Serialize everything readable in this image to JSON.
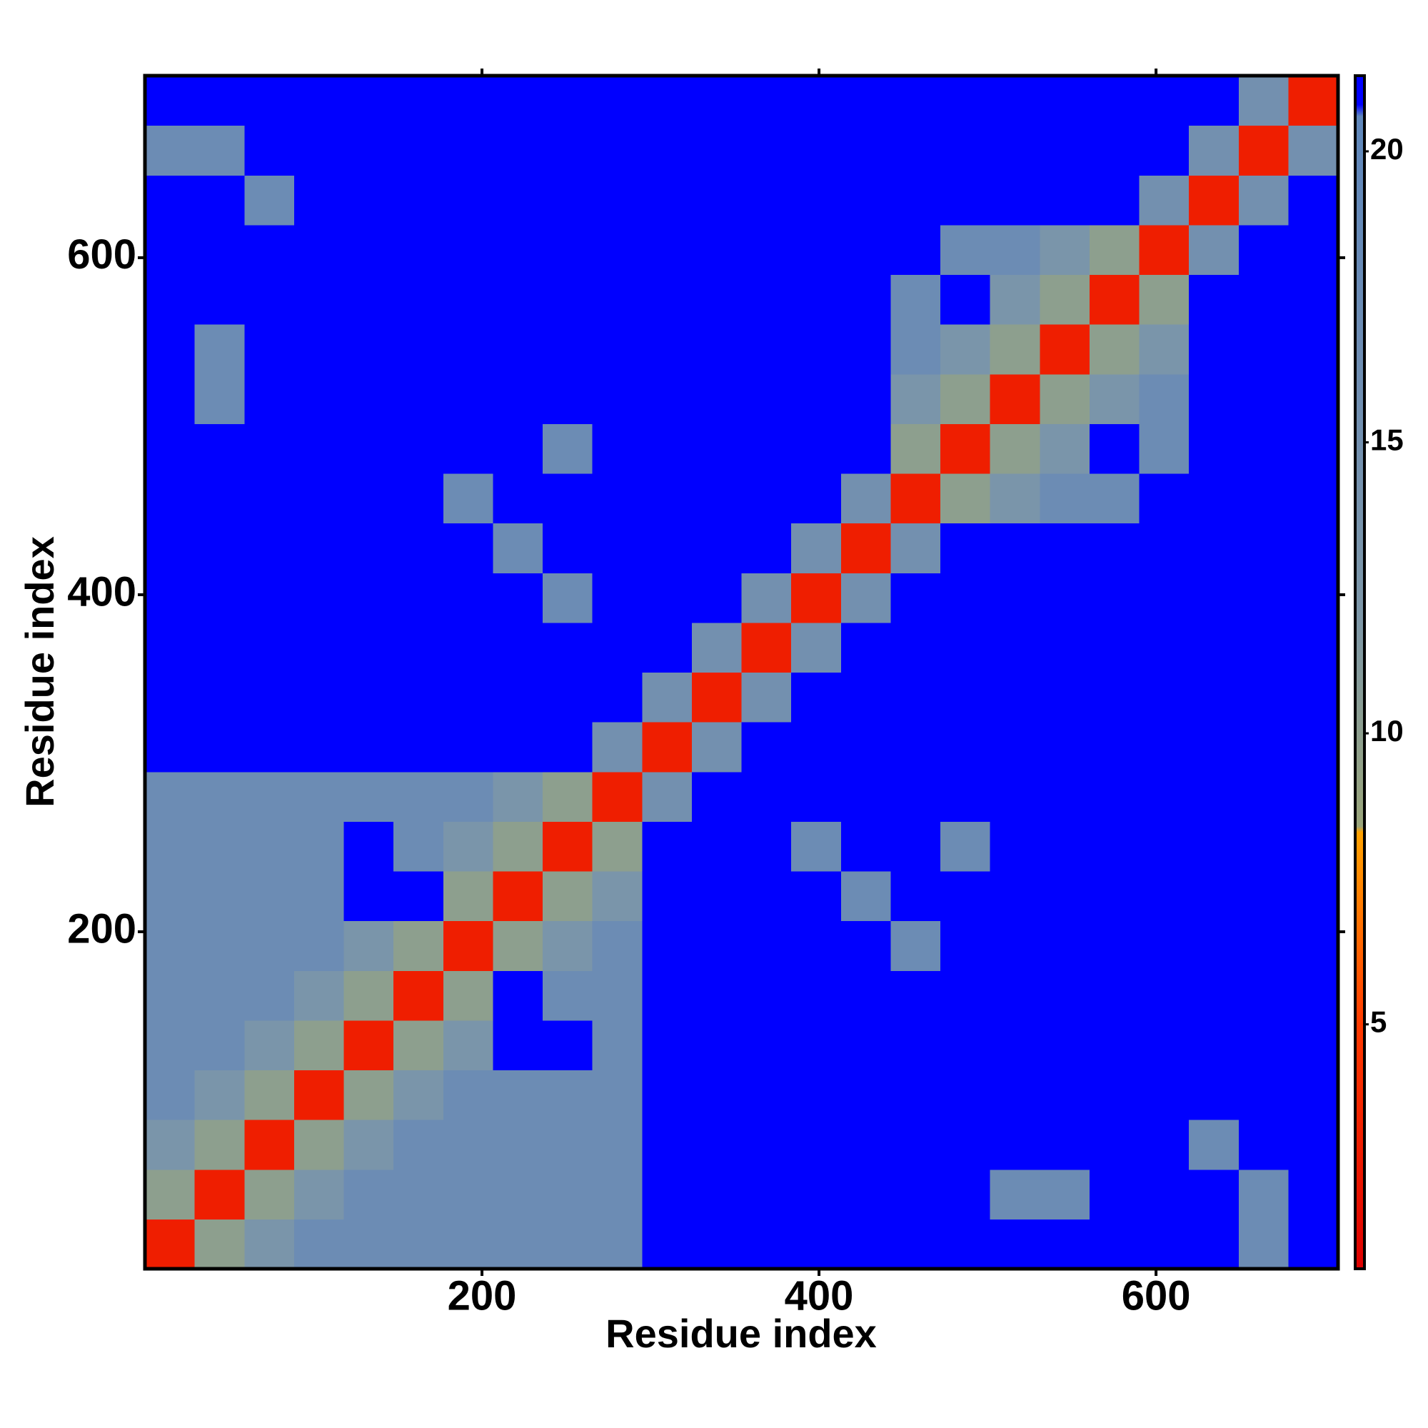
{
  "chart_data": {
    "type": "heatmap",
    "x_label": "Residue index",
    "y_label": "Residue index",
    "xlim": [
      0,
      708
    ],
    "ylim": [
      0,
      708
    ],
    "xticks": [
      200,
      400,
      600
    ],
    "yticks": [
      200,
      400,
      600
    ],
    "bins": [
      0,
      29.5,
      59,
      88.5,
      118,
      147.5,
      177,
      206.5,
      236,
      265.5,
      295,
      324.5,
      354,
      383.5,
      413,
      442.5,
      472,
      501.5,
      531,
      560.5,
      590,
      619.5,
      649,
      678.5,
      708
    ],
    "values": [
      [
        3,
        10,
        13,
        17,
        17,
        17,
        17,
        17,
        17,
        17,
        21,
        21,
        21,
        21,
        21,
        21,
        21,
        21,
        21,
        21,
        21,
        21,
        17,
        21
      ],
      [
        10,
        3,
        10,
        13,
        17,
        17,
        17,
        17,
        17,
        17,
        21,
        21,
        21,
        21,
        21,
        21,
        21,
        17,
        17,
        21,
        21,
        21,
        17,
        21
      ],
      [
        13,
        10,
        3,
        10,
        13,
        17,
        17,
        17,
        17,
        17,
        21,
        21,
        21,
        21,
        21,
        21,
        21,
        21,
        21,
        21,
        21,
        17,
        21,
        21
      ],
      [
        17,
        13,
        10,
        3,
        10,
        13,
        17,
        17,
        17,
        17,
        21,
        21,
        21,
        21,
        21,
        21,
        21,
        21,
        21,
        21,
        21,
        21,
        21,
        21
      ],
      [
        17,
        17,
        13,
        10,
        3,
        10,
        13,
        21,
        21,
        17,
        21,
        21,
        21,
        21,
        21,
        21,
        21,
        21,
        21,
        21,
        21,
        21,
        21,
        21
      ],
      [
        17,
        17,
        17,
        13,
        10,
        3,
        10,
        21,
        17,
        17,
        21,
        21,
        21,
        21,
        21,
        21,
        21,
        21,
        21,
        21,
        21,
        21,
        21,
        21
      ],
      [
        17,
        17,
        17,
        17,
        13,
        10,
        3,
        10,
        13,
        17,
        21,
        21,
        21,
        21,
        21,
        17,
        21,
        21,
        21,
        21,
        21,
        21,
        21,
        21
      ],
      [
        17,
        17,
        17,
        17,
        21,
        21,
        10,
        3,
        10,
        13,
        21,
        21,
        21,
        21,
        17,
        21,
        21,
        21,
        21,
        21,
        21,
        21,
        21,
        21
      ],
      [
        17,
        17,
        17,
        17,
        21,
        17,
        13,
        10,
        3,
        10,
        21,
        21,
        21,
        17,
        21,
        21,
        17,
        21,
        21,
        21,
        21,
        21,
        21,
        21
      ],
      [
        17,
        17,
        17,
        17,
        17,
        17,
        17,
        13,
        10,
        3,
        15,
        21,
        21,
        21,
        21,
        21,
        21,
        21,
        21,
        21,
        21,
        21,
        21,
        21
      ],
      [
        21,
        21,
        21,
        21,
        21,
        21,
        21,
        21,
        21,
        15,
        3,
        15,
        21,
        21,
        21,
        21,
        21,
        21,
        21,
        21,
        21,
        21,
        21,
        21
      ],
      [
        21,
        21,
        21,
        21,
        21,
        21,
        21,
        21,
        21,
        21,
        15,
        3,
        15,
        21,
        21,
        21,
        21,
        21,
        21,
        21,
        21,
        21,
        21,
        21
      ],
      [
        21,
        21,
        21,
        21,
        21,
        21,
        21,
        21,
        21,
        21,
        21,
        15,
        3,
        15,
        21,
        21,
        21,
        21,
        21,
        21,
        21,
        21,
        21,
        21
      ],
      [
        21,
        21,
        21,
        21,
        21,
        21,
        21,
        21,
        17,
        21,
        21,
        21,
        15,
        3,
        15,
        21,
        21,
        21,
        21,
        21,
        21,
        21,
        21,
        21
      ],
      [
        21,
        21,
        21,
        21,
        21,
        21,
        21,
        17,
        21,
        21,
        21,
        21,
        21,
        15,
        3,
        15,
        21,
        21,
        21,
        21,
        21,
        21,
        21,
        21
      ],
      [
        21,
        21,
        21,
        21,
        21,
        21,
        17,
        21,
        21,
        21,
        21,
        21,
        21,
        21,
        15,
        3,
        10,
        13,
        17,
        17,
        21,
        21,
        21,
        21
      ],
      [
        21,
        21,
        21,
        21,
        21,
        21,
        21,
        21,
        17,
        21,
        21,
        21,
        21,
        21,
        21,
        10,
        3,
        10,
        13,
        21,
        17,
        21,
        21,
        21
      ],
      [
        21,
        17,
        21,
        21,
        21,
        21,
        21,
        21,
        21,
        21,
        21,
        21,
        21,
        21,
        21,
        13,
        10,
        3,
        10,
        13,
        17,
        21,
        21,
        21
      ],
      [
        21,
        17,
        21,
        21,
        21,
        21,
        21,
        21,
        21,
        21,
        21,
        21,
        21,
        21,
        21,
        17,
        13,
        10,
        3,
        10,
        13,
        21,
        21,
        21
      ],
      [
        21,
        21,
        21,
        21,
        21,
        21,
        21,
        21,
        21,
        21,
        21,
        21,
        21,
        21,
        21,
        17,
        21,
        13,
        10,
        3,
        10,
        21,
        21,
        21
      ],
      [
        21,
        21,
        21,
        21,
        21,
        21,
        21,
        21,
        21,
        21,
        21,
        21,
        21,
        21,
        21,
        21,
        17,
        17,
        13,
        10,
        3,
        15,
        21,
        21
      ],
      [
        21,
        21,
        17,
        21,
        21,
        21,
        21,
        21,
        21,
        21,
        21,
        21,
        21,
        21,
        21,
        21,
        21,
        21,
        21,
        21,
        15,
        3,
        15,
        21
      ],
      [
        17,
        17,
        21,
        21,
        21,
        21,
        21,
        21,
        21,
        21,
        21,
        21,
        21,
        21,
        21,
        21,
        21,
        21,
        21,
        21,
        21,
        15,
        3,
        15
      ],
      [
        21,
        21,
        21,
        21,
        21,
        21,
        21,
        21,
        21,
        21,
        21,
        21,
        21,
        21,
        21,
        21,
        21,
        21,
        21,
        21,
        21,
        21,
        15,
        3
      ]
    ],
    "colorbar": {
      "lim": [
        0.8,
        21.3
      ],
      "ticks": [
        5,
        10,
        15,
        20
      ],
      "stops": [
        [
          0.8,
          "#dd0000"
        ],
        [
          5,
          "#ff3a00"
        ],
        [
          8.3,
          "#ffa200"
        ],
        [
          8.4,
          "#9aa57a"
        ],
        [
          12,
          "#7d97a8"
        ],
        [
          17,
          "#6c8cb4"
        ],
        [
          20.6,
          "#5f87bb"
        ],
        [
          20.8,
          "#0000ff"
        ],
        [
          21.3,
          "#0000ff"
        ]
      ]
    }
  }
}
